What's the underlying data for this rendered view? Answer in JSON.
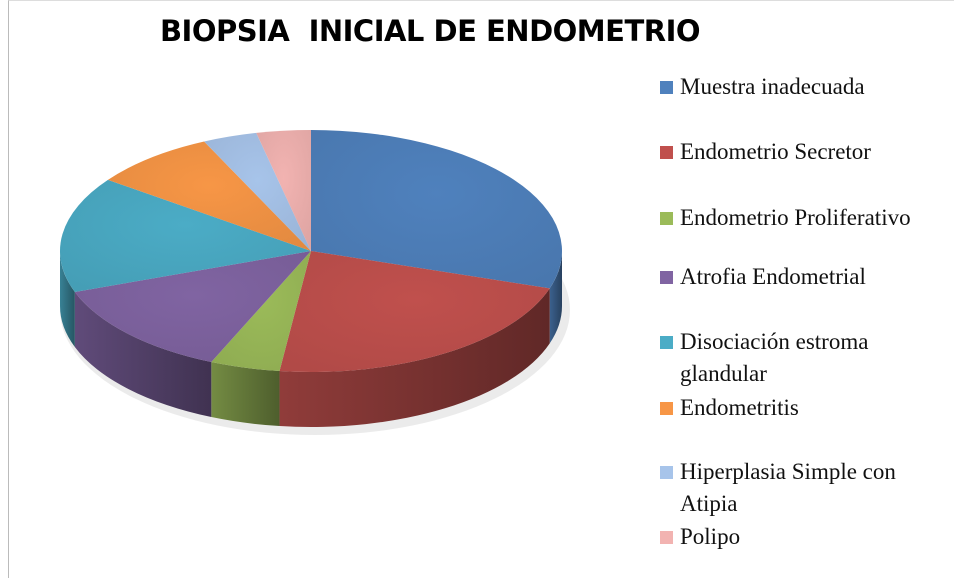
{
  "chart_data": {
    "type": "pie3d",
    "title": "BIOPSIA  INICIAL DE ENDOMETRIO",
    "categories": [
      "Muestra inadecuada",
      "Endometrio Secretor",
      "Endometrio Proliferativo",
      "Atrofia Endometrial",
      "Disociación estroma glandular",
      "Endometritis",
      "Hiperplasia Simple con Atipia",
      "Polipo"
    ],
    "values": [
      30,
      22,
      4.5,
      13,
      15.5,
      8,
      3.5,
      3.5
    ],
    "colors": [
      "#4f81bd",
      "#c0504d",
      "#9bbb59",
      "#8064a2",
      "#4bacc6",
      "#f79646",
      "#a7c4ea",
      "#f2b3b1"
    ],
    "legend": "right"
  }
}
